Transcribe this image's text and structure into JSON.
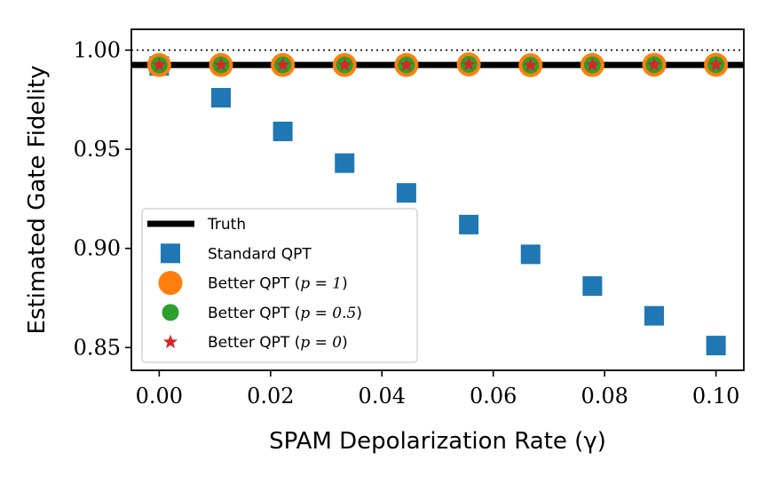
{
  "chart_data": {
    "type": "scatter",
    "xlabel": "SPAM Depolarization Rate (γ)",
    "ylabel": "Estimated Gate Fidelity",
    "xlim": [
      -0.005,
      0.105
    ],
    "ylim": [
      0.8385,
      1.0105
    ],
    "xticks": [
      0.0,
      0.02,
      0.04,
      0.06,
      0.08,
      0.1
    ],
    "xtick_labels": [
      "0.00",
      "0.02",
      "0.04",
      "0.06",
      "0.08",
      "0.10"
    ],
    "yticks": [
      0.85,
      0.9,
      0.95,
      1.0
    ],
    "ytick_labels": [
      "0.85",
      "0.90",
      "0.95",
      "1.00"
    ],
    "grid": false,
    "legend_position": "lower-left",
    "reference_line": {
      "y": 1.0,
      "style": "dotted",
      "color": "#000000"
    },
    "truth": {
      "name": "Truth",
      "y": 0.9925,
      "color": "#000000"
    },
    "x": [
      0.0,
      0.0111,
      0.0222,
      0.0333,
      0.0444,
      0.0556,
      0.0667,
      0.0778,
      0.0889,
      0.1
    ],
    "series": [
      {
        "name": "Standard QPT",
        "marker": "square",
        "color": "#1f77b4",
        "values": [
          0.992,
          0.976,
          0.959,
          0.943,
          0.928,
          0.912,
          0.897,
          0.881,
          0.866,
          0.851
        ]
      },
      {
        "name": "Better QPT (p = 1)",
        "marker": "circle-large",
        "color": "#ff7f0e",
        "values": [
          0.9925,
          0.9925,
          0.9925,
          0.9925,
          0.9925,
          0.9928,
          0.9924,
          0.9925,
          0.9926,
          0.9926
        ]
      },
      {
        "name": "Better QPT (p = 0.5)",
        "marker": "circle",
        "color": "#2ca02c",
        "values": [
          0.9925,
          0.9925,
          0.9925,
          0.9925,
          0.9925,
          0.9928,
          0.9924,
          0.9925,
          0.9926,
          0.9926
        ]
      },
      {
        "name": "Better QPT (p = 0)",
        "marker": "star",
        "color": "#d62728",
        "values": [
          0.9925,
          0.9925,
          0.9925,
          0.9925,
          0.9925,
          0.9928,
          0.9924,
          0.9925,
          0.9926,
          0.9926
        ]
      }
    ],
    "legend": [
      {
        "label": "Truth",
        "kind": "line"
      },
      {
        "label": "Standard QPT",
        "kind": "square"
      },
      {
        "label": "Better QPT (",
        "math": "p = 1",
        "suffix": ")",
        "kind": "circle-large"
      },
      {
        "label": "Better QPT (",
        "math": "p = 0.5",
        "suffix": ")",
        "kind": "circle"
      },
      {
        "label": "Better QPT (",
        "math": "p = 0",
        "suffix": ")",
        "kind": "star"
      }
    ]
  }
}
